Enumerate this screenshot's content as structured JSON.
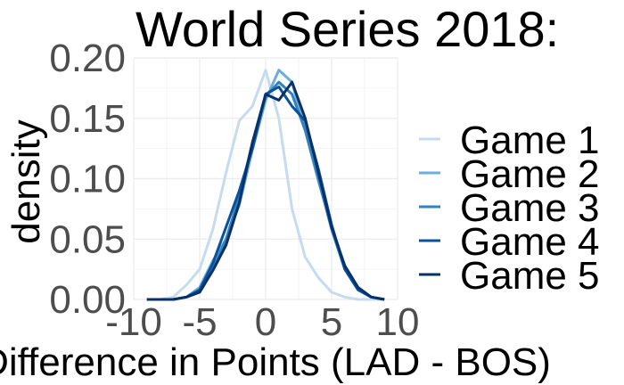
{
  "chart_data": {
    "type": "line",
    "title": "World Series 2018:",
    "xlabel": "Difference in Points (LAD - BOS)",
    "ylabel": "density",
    "xlim": [
      -10,
      10
    ],
    "ylim": [
      0,
      0.2
    ],
    "xticks": [
      -10,
      -5,
      0,
      5,
      10
    ],
    "yticks": [
      0.0,
      0.05,
      0.1,
      0.15,
      0.2
    ],
    "xtick_labels": [
      "-10",
      "-5",
      "0",
      "5",
      "10"
    ],
    "ytick_labels": [
      "0.00",
      "0.05",
      "0.10",
      "0.15",
      "0.20"
    ],
    "grid": true,
    "legend_position": "right",
    "series": [
      {
        "name": "Game 1",
        "color": "#c6dbef",
        "x": [
          -9,
          -8,
          -7,
          -6,
          -5,
          -4,
          -3,
          -2,
          -1,
          0,
          1,
          2,
          3,
          4,
          5,
          6,
          7,
          8,
          9
        ],
        "values": [
          0.0,
          0.0,
          0.002,
          0.012,
          0.025,
          0.058,
          0.105,
          0.148,
          0.16,
          0.19,
          0.15,
          0.075,
          0.035,
          0.018,
          0.006,
          0.002,
          0.0,
          0.0,
          0.0
        ]
      },
      {
        "name": "Game 2",
        "color": "#6baed6",
        "x": [
          -9,
          -8,
          -7,
          -6,
          -5,
          -4,
          -3,
          -2,
          -1,
          0,
          1,
          2,
          3,
          4,
          5,
          6,
          7,
          8,
          9
        ],
        "values": [
          0.0,
          0.0,
          0.0,
          0.002,
          0.01,
          0.032,
          0.05,
          0.078,
          0.124,
          0.165,
          0.19,
          0.18,
          0.14,
          0.098,
          0.06,
          0.026,
          0.01,
          0.002,
          0.0
        ]
      },
      {
        "name": "Game 3",
        "color": "#3182bd",
        "x": [
          -9,
          -8,
          -7,
          -6,
          -5,
          -4,
          -3,
          -2,
          -1,
          0,
          1,
          2,
          3,
          4,
          5,
          6,
          7,
          8,
          9
        ],
        "values": [
          0.0,
          0.0,
          0.0,
          0.002,
          0.006,
          0.025,
          0.05,
          0.085,
          0.13,
          0.168,
          0.18,
          0.17,
          0.14,
          0.1,
          0.058,
          0.025,
          0.008,
          0.002,
          0.0
        ]
      },
      {
        "name": "Game 4",
        "color": "#08519c",
        "x": [
          -9,
          -8,
          -7,
          -6,
          -5,
          -4,
          -3,
          -2,
          -1,
          0,
          1,
          2,
          3,
          4,
          5,
          6,
          7,
          8,
          9
        ],
        "values": [
          0.0,
          0.0,
          0.0,
          0.002,
          0.008,
          0.03,
          0.06,
          0.09,
          0.125,
          0.17,
          0.176,
          0.16,
          0.148,
          0.108,
          0.062,
          0.025,
          0.008,
          0.002,
          0.0
        ]
      },
      {
        "name": "Game 5",
        "color": "#08306b",
        "x": [
          -9,
          -8,
          -7,
          -6,
          -5,
          -4,
          -3,
          -2,
          -1,
          0,
          1,
          2,
          3,
          4,
          5,
          6,
          7,
          8,
          9
        ],
        "values": [
          0.0,
          0.0,
          0.0,
          0.002,
          0.006,
          0.024,
          0.045,
          0.08,
          0.13,
          0.17,
          0.165,
          0.18,
          0.15,
          0.105,
          0.06,
          0.028,
          0.01,
          0.002,
          0.0
        ]
      }
    ]
  }
}
